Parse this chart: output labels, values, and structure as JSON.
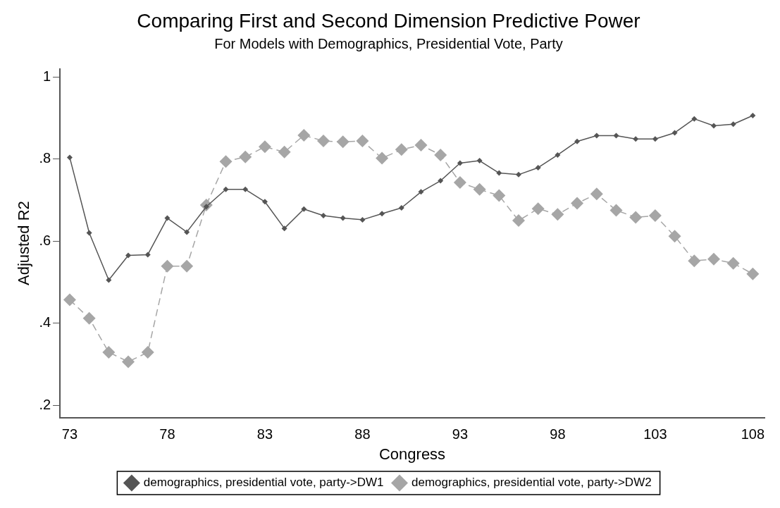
{
  "chart_data": {
    "type": "line",
    "title": "Comparing First and Second Dimension Predictive Power",
    "subtitle": "For Models with Demographics, Presidential Vote, Party",
    "xlabel": "Congress",
    "ylabel": "Adjusted R2",
    "x": [
      73,
      74,
      75,
      76,
      77,
      78,
      79,
      80,
      81,
      82,
      83,
      84,
      85,
      86,
      87,
      88,
      89,
      90,
      91,
      92,
      93,
      94,
      95,
      96,
      97,
      98,
      99,
      100,
      101,
      102,
      103,
      104,
      105,
      106,
      107,
      108
    ],
    "series": [
      {
        "name": "demographics, presidential vote, party->DW1",
        "color": "#555555",
        "line_style": "solid",
        "values": [
          0.804,
          0.62,
          0.505,
          0.565,
          0.567,
          0.656,
          0.622,
          0.684,
          0.726,
          0.726,
          0.696,
          0.631,
          0.678,
          0.662,
          0.656,
          0.652,
          0.667,
          0.681,
          0.72,
          0.747,
          0.79,
          0.796,
          0.766,
          0.762,
          0.779,
          0.81,
          0.843,
          0.857,
          0.857,
          0.849,
          0.849,
          0.864,
          0.898,
          0.881,
          0.885,
          0.906
        ]
      },
      {
        "name": "demographics, presidential vote, party->DW2",
        "color": "#a6a6a6",
        "line_style": "dashed",
        "values": [
          0.457,
          0.412,
          0.329,
          0.306,
          0.329,
          0.539,
          0.539,
          0.688,
          0.794,
          0.805,
          0.83,
          0.817,
          0.858,
          0.844,
          0.842,
          0.844,
          0.802,
          0.823,
          0.834,
          0.81,
          0.743,
          0.726,
          0.711,
          0.65,
          0.679,
          0.665,
          0.692,
          0.715,
          0.675,
          0.658,
          0.662,
          0.612,
          0.552,
          0.556,
          0.546,
          0.52
        ]
      }
    ],
    "xlim": [
      72.5,
      108.6
    ],
    "xticks": [
      73,
      78,
      83,
      88,
      93,
      98,
      103,
      108
    ],
    "ylim": [
      0.17,
      1.02
    ],
    "yticks": [
      {
        "value": 0.2,
        "label": ".2"
      },
      {
        "value": 0.4,
        "label": ".4"
      },
      {
        "value": 0.6,
        "label": ".6"
      },
      {
        "value": 0.8,
        "label": ".8"
      },
      {
        "value": 1,
        "label": "1"
      }
    ],
    "grid": false,
    "legend": "bottom",
    "marker": "diamond"
  }
}
